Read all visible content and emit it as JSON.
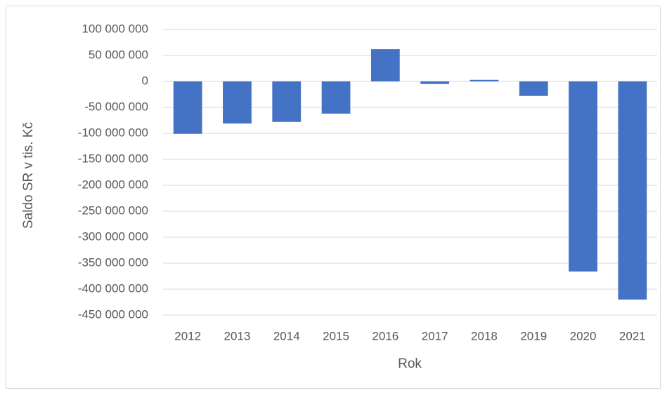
{
  "chart_data": {
    "type": "bar",
    "x_label": "Rok",
    "y_label": "Saldo SR v tis. Kč",
    "categories": [
      "2012",
      "2013",
      "2014",
      "2015",
      "2016",
      "2017",
      "2018",
      "2019",
      "2020",
      "2021"
    ],
    "values": [
      -101000000,
      -81000000,
      -78000000,
      -62000000,
      62000000,
      -5000000,
      3000000,
      -28000000,
      -366000000,
      -420000000
    ],
    "color": "#4472c4",
    "ylim": [
      -450000000,
      100000000
    ],
    "yticks": [
      {
        "value": 100000000,
        "label": "100 000 000"
      },
      {
        "value": 50000000,
        "label": "50 000 000"
      },
      0,
      {
        "value": -50000000,
        "label": "-50 000 000"
      },
      {
        "value": -100000000,
        "label": "-100 000 000"
      },
      {
        "value": -150000000,
        "label": "-150 000 000"
      },
      {
        "value": -200000000,
        "label": "-200 000 000"
      },
      {
        "value": -250000000,
        "label": "-250 000 000"
      },
      {
        "value": -300000000,
        "label": "-300 000 000"
      },
      {
        "value": -350000000,
        "label": "-350 000 000"
      },
      {
        "value": -400000000,
        "label": "-400 000 000"
      },
      {
        "value": -450000000,
        "label": "-450 000 000"
      }
    ],
    "grid": true
  }
}
